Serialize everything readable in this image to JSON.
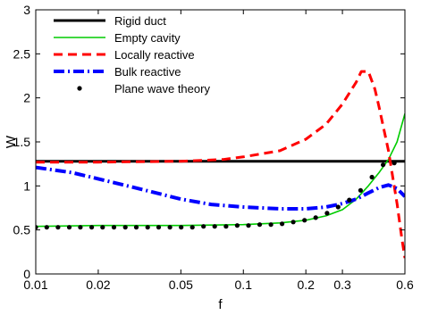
{
  "chart_data": {
    "type": "line",
    "xlabel": "f",
    "ylabel": "W",
    "x_scale": "log",
    "xlim": [
      0.01,
      0.6
    ],
    "ylim": [
      0,
      3
    ],
    "x_ticks": [
      {
        "value": 0.01,
        "label": "0.01"
      },
      {
        "value": 0.02,
        "label": "0.02"
      },
      {
        "value": 0.05,
        "label": "0.05"
      },
      {
        "value": 0.1,
        "label": "0.1"
      },
      {
        "value": 0.2,
        "label": "0.2"
      },
      {
        "value": 0.3,
        "label": "0.3"
      },
      {
        "value": 0.6,
        "label": "0.6"
      }
    ],
    "y_ticks": [
      {
        "value": 0,
        "label": "0"
      },
      {
        "value": 0.5,
        "label": "0.5"
      },
      {
        "value": 1,
        "label": "1"
      },
      {
        "value": 1.5,
        "label": "1.5"
      },
      {
        "value": 2,
        "label": "2"
      },
      {
        "value": 2.5,
        "label": "2.5"
      },
      {
        "value": 3,
        "label": "3"
      }
    ],
    "legend_position": "top-left",
    "grid": false,
    "series": [
      {
        "name": "Rigid duct",
        "style": "solid",
        "color": "#000000",
        "x": [
          0.01,
          0.6
        ],
        "y": [
          1.28,
          1.28
        ]
      },
      {
        "name": "Empty cavity",
        "style": "solid",
        "color": "#00cc00",
        "x": [
          0.01,
          0.02,
          0.05,
          0.1,
          0.15,
          0.2,
          0.25,
          0.3,
          0.35,
          0.4,
          0.45,
          0.5,
          0.55,
          0.6
        ],
        "y": [
          0.54,
          0.55,
          0.55,
          0.56,
          0.58,
          0.61,
          0.66,
          0.73,
          0.85,
          1.0,
          1.15,
          1.3,
          1.5,
          1.82
        ]
      },
      {
        "name": "Locally reactive",
        "style": "dashed",
        "color": "#ff0000",
        "x": [
          0.01,
          0.02,
          0.05,
          0.08,
          0.1,
          0.15,
          0.2,
          0.25,
          0.3,
          0.35,
          0.37,
          0.4,
          0.43,
          0.45,
          0.5,
          0.55,
          0.58,
          0.6
        ],
        "y": [
          1.27,
          1.27,
          1.28,
          1.3,
          1.33,
          1.4,
          1.53,
          1.7,
          1.93,
          2.18,
          2.3,
          2.3,
          2.1,
          1.9,
          1.4,
          0.8,
          0.4,
          0.18
        ]
      },
      {
        "name": "Bulk reactive",
        "style": "dashdot",
        "color": "#0000ff",
        "x": [
          0.01,
          0.015,
          0.02,
          0.03,
          0.05,
          0.07,
          0.1,
          0.15,
          0.2,
          0.25,
          0.3,
          0.35,
          0.4,
          0.45,
          0.5,
          0.55,
          0.6
        ],
        "y": [
          1.21,
          1.15,
          1.08,
          0.98,
          0.85,
          0.79,
          0.76,
          0.74,
          0.74,
          0.76,
          0.8,
          0.85,
          0.92,
          0.98,
          1.01,
          0.97,
          0.88
        ]
      },
      {
        "name": "Plane wave theory",
        "style": "markers",
        "color": "#000000",
        "x": [
          0.01,
          0.0113,
          0.0128,
          0.0145,
          0.0164,
          0.0186,
          0.021,
          0.0238,
          0.027,
          0.0305,
          0.0346,
          0.0391,
          0.0443,
          0.0502,
          0.0568,
          0.0643,
          0.0728,
          0.0825,
          0.0934,
          0.1058,
          0.1198,
          0.1357,
          0.1536,
          0.174,
          0.197,
          0.223,
          0.253,
          0.286,
          0.324,
          0.367,
          0.416,
          0.471,
          0.533
        ],
        "y": [
          0.53,
          0.53,
          0.53,
          0.53,
          0.53,
          0.53,
          0.53,
          0.53,
          0.53,
          0.53,
          0.53,
          0.53,
          0.53,
          0.53,
          0.53,
          0.54,
          0.54,
          0.54,
          0.55,
          0.55,
          0.56,
          0.56,
          0.57,
          0.59,
          0.61,
          0.64,
          0.69,
          0.76,
          0.84,
          0.95,
          1.1,
          1.24,
          1.26
        ]
      }
    ]
  }
}
